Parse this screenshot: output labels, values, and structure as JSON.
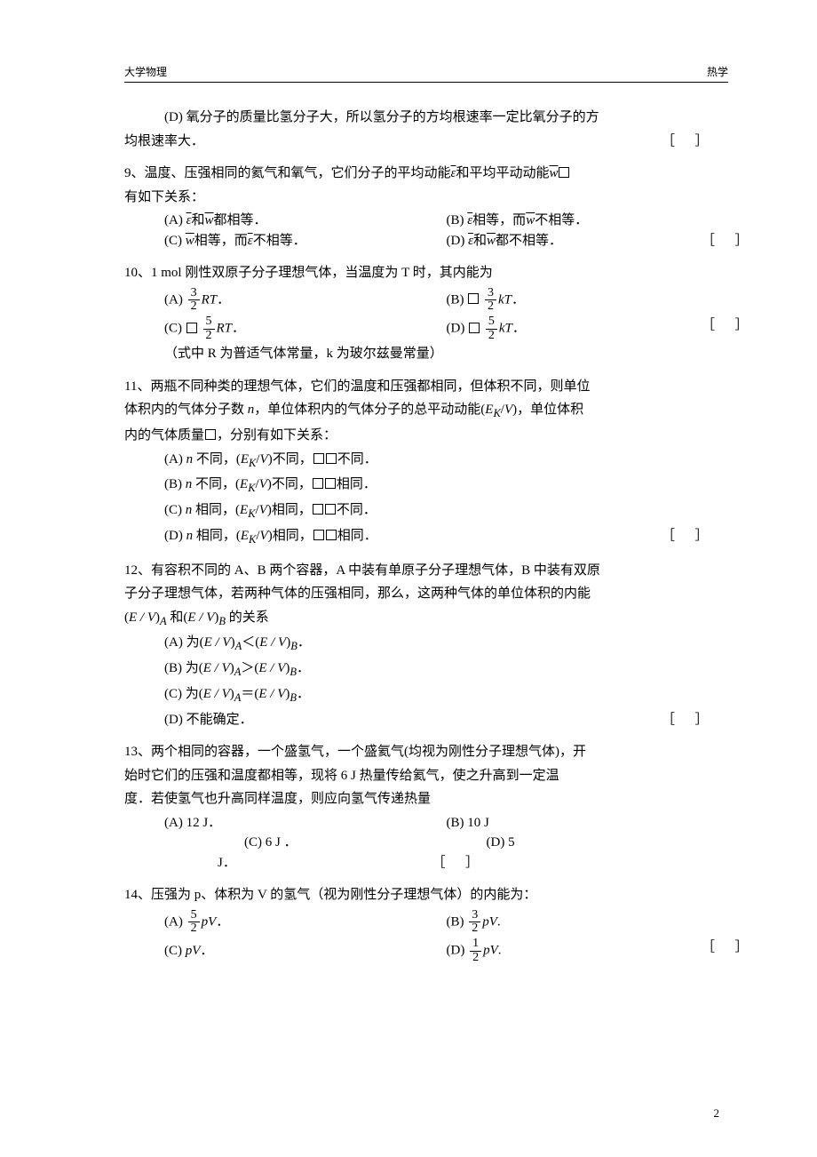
{
  "header": {
    "left": "大学物理",
    "right": "热学"
  },
  "page_number": "2",
  "q8d": {
    "text_a": "(D) 氧分子的质量比氢分子大，所以氢分子的方均根速率一定比氧分子的方",
    "text_b": "均根速率大．"
  },
  "q9": {
    "stem_a": "9、温度、压强相同的氦气和氧气，它们分子的平均动能",
    "stem_b": "和平均平动动能",
    "stem_c": "有如下关系：",
    "A_a": "(A) ",
    "A_mid": "和",
    "A_b": "都相等．",
    "B_a": "(B) ",
    "B_mid": "相等，而",
    "B_b": "不相等．",
    "C_a": "(C) ",
    "C_mid": "相等，而",
    "C_b": "不相等．",
    "D_a": "(D) ",
    "D_mid": "和",
    "D_b": "都不相等．",
    "eps": "ε",
    "w": "w"
  },
  "q10": {
    "stem": "10、1 mol 刚性双原子分子理想气体，当温度为 T 时，其内能为",
    "A": "(A) ",
    "B": "(B) ",
    "C": "(C) ",
    "D": "(D) ",
    "f3": "3",
    "f5": "5",
    "f2": "2",
    "RT": "RT",
    "kT": "kT",
    "dot": "．",
    "note": "（式中 R 为普适气体常量，k 为玻尔兹曼常量）"
  },
  "q11": {
    "l1": "11、两瓶不同种类的理想气体，它们的温度和压强都相同，但体积不同，则单位",
    "l2a": "体积内的气体分子数 ",
    "l2b": "，单位体积内的气体分子的总平动动能(",
    "l2c": ")，单位体积",
    "l3a": "内的气体质量",
    "l3b": "，分别有如下关系：",
    "n": "n",
    "EK": "E",
    "Ksub": "K",
    "V": "V",
    "A": "(A) ",
    "B": "(B) ",
    "C": "(C) ",
    "D": "(D) ",
    "diff": "不同，",
    "same": "相同，",
    "diff2": "不同．",
    "same2": "相同．",
    "ekv_diff": "不同，",
    "ekv_same": "相同，"
  },
  "q12": {
    "l1": "12、有容积不同的 A、B 两个容器，A 中装有单原子分子理想气体，B 中装有双原",
    "l2": "子分子理想气体，若两种气体的压强相同，那么，这两种气体的单位体积的内能",
    "l3a": "(",
    "l3b": " 和(",
    "l3c": " 的关系",
    "EV": "E / V",
    "subA": "A",
    "subB": "B",
    "A": "(A) 为(",
    "B": "(B) 为(",
    "C": "(C) 为(",
    "D": "(D) 不能确定．",
    "lt": "＜(",
    "gt": "＞(",
    "eq": "＝(",
    "end": "．"
  },
  "q13": {
    "l1": "13、两个相同的容器，一个盛氢气，一个盛氦气(均视为刚性分子理想气体)，开",
    "l2": "始时它们的压强和温度都相等，现将 6 J 热量传给氦气，使之升高到一定温",
    "l3": "度．若使氢气也升高同样温度，则应向氢气传递热量",
    "A": "(A) 12 J．",
    "B": "(B) 10 J",
    "C": "(C) 6 J ．",
    "D": "(D) 5",
    "Dtail": "J．"
  },
  "q14": {
    "stem": "14、压强为 p、体积为 V 的氢气（视为刚性分子理想气体）的内能为：",
    "A": "(A) ",
    "B": "(B) ",
    "C": "(C)  ",
    "D": "(D) ",
    "pV": "pV",
    "dot": "．",
    "f5": "5",
    "f3": "3",
    "f1": "1",
    "f2": "2"
  },
  "bracket": "［］"
}
